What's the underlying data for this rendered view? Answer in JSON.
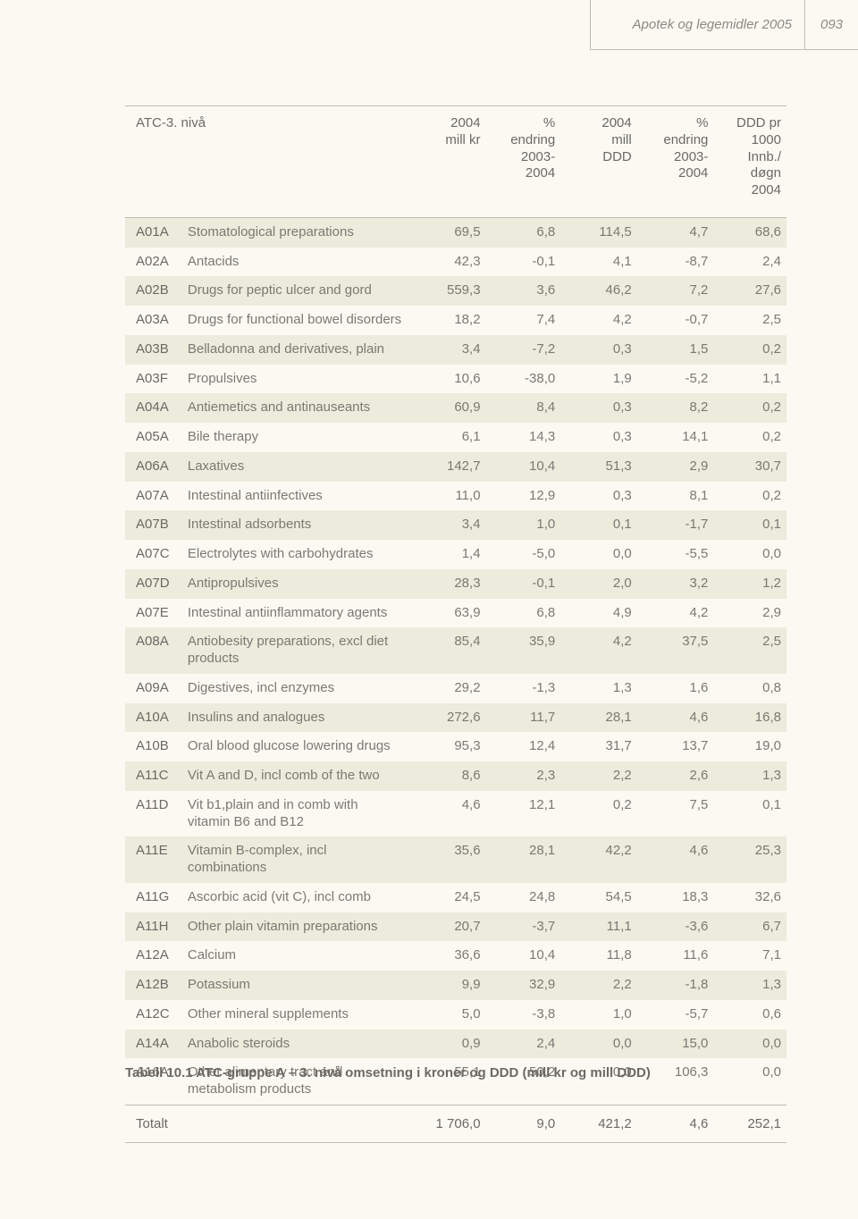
{
  "header": {
    "title": "Apotek og legemidler 2005",
    "page_num": "093"
  },
  "caption": "Tabell 10.1 ATC-gruppe A – 3. nivå omsetning i kroner og DDD (mill kr og mill DDD)",
  "colors": {
    "page_bg": "#fcf9f3",
    "row_shade": "#ecebdc",
    "border": "#bdbcb2",
    "text_primary": "#696a64",
    "text_secondary": "#797a72",
    "header_italic": "#8a8a82"
  },
  "typography": {
    "body_fontsize": 15,
    "caption_fontsize": 15,
    "caption_weight": 600,
    "header_style": "italic"
  },
  "table": {
    "columns": [
      {
        "key": "atc",
        "label": "ATC-3. nivå",
        "align": "left",
        "span": 2
      },
      {
        "key": "millkr",
        "label": "2004\nmill kr",
        "align": "right"
      },
      {
        "key": "pct1",
        "label": "%\nendring\n2003-\n2004",
        "align": "right"
      },
      {
        "key": "millddd",
        "label": "2004\nmill\nDDD",
        "align": "right"
      },
      {
        "key": "pct2",
        "label": "%\nendring\n2003-\n2004",
        "align": "right"
      },
      {
        "key": "dddpr",
        "label": "DDD pr\n1000\nInnb./\ndøgn\n2004",
        "align": "right"
      }
    ],
    "rows": [
      {
        "code": "A01A",
        "desc": "Stomatological preparations",
        "v": [
          "69,5",
          "6,8",
          "114,5",
          "4,7",
          "68,6"
        ]
      },
      {
        "code": "A02A",
        "desc": "Antacids",
        "v": [
          "42,3",
          "-0,1",
          "4,1",
          "-8,7",
          "2,4"
        ]
      },
      {
        "code": "A02B",
        "desc": "Drugs for peptic ulcer and gord",
        "v": [
          "559,3",
          "3,6",
          "46,2",
          "7,2",
          "27,6"
        ]
      },
      {
        "code": "A03A",
        "desc": "Drugs for functional bowel disorders",
        "v": [
          "18,2",
          "7,4",
          "4,2",
          "-0,7",
          "2,5"
        ]
      },
      {
        "code": "A03B",
        "desc": "Belladonna and derivatives, plain",
        "v": [
          "3,4",
          "-7,2",
          "0,3",
          "1,5",
          "0,2"
        ]
      },
      {
        "code": "A03F",
        "desc": "Propulsives",
        "v": [
          "10,6",
          "-38,0",
          "1,9",
          "-5,2",
          "1,1"
        ]
      },
      {
        "code": "A04A",
        "desc": "Antiemetics and antinauseants",
        "v": [
          "60,9",
          "8,4",
          "0,3",
          "8,2",
          "0,2"
        ]
      },
      {
        "code": "A05A",
        "desc": "Bile therapy",
        "v": [
          "6,1",
          "14,3",
          "0,3",
          "14,1",
          "0,2"
        ]
      },
      {
        "code": "A06A",
        "desc": "Laxatives",
        "v": [
          "142,7",
          "10,4",
          "51,3",
          "2,9",
          "30,7"
        ]
      },
      {
        "code": "A07A",
        "desc": "Intestinal antiinfectives",
        "v": [
          "11,0",
          "12,9",
          "0,3",
          "8,1",
          "0,2"
        ]
      },
      {
        "code": "A07B",
        "desc": "Intestinal adsorbents",
        "v": [
          "3,4",
          "1,0",
          "0,1",
          "-1,7",
          "0,1"
        ]
      },
      {
        "code": "A07C",
        "desc": "Electrolytes with carbohydrates",
        "v": [
          "1,4",
          "-5,0",
          "0,0",
          "-5,5",
          "0,0"
        ]
      },
      {
        "code": "A07D",
        "desc": "Antipropulsives",
        "v": [
          "28,3",
          "-0,1",
          "2,0",
          "3,2",
          "1,2"
        ]
      },
      {
        "code": "A07E",
        "desc": "Intestinal antiinflammatory agents",
        "v": [
          "63,9",
          "6,8",
          "4,9",
          "4,2",
          "2,9"
        ]
      },
      {
        "code": "A08A",
        "desc": "Antiobesity preparations, excl diet products",
        "v": [
          "85,4",
          "35,9",
          "4,2",
          "37,5",
          "2,5"
        ]
      },
      {
        "code": "A09A",
        "desc": "Digestives, incl enzymes",
        "v": [
          "29,2",
          "-1,3",
          "1,3",
          "1,6",
          "0,8"
        ]
      },
      {
        "code": "A10A",
        "desc": "Insulins and analogues",
        "v": [
          "272,6",
          "11,7",
          "28,1",
          "4,6",
          "16,8"
        ]
      },
      {
        "code": "A10B",
        "desc": "Oral blood glucose lowering drugs",
        "v": [
          "95,3",
          "12,4",
          "31,7",
          "13,7",
          "19,0"
        ]
      },
      {
        "code": "A11C",
        "desc": "Vit A and D, incl comb of the two",
        "v": [
          "8,6",
          "2,3",
          "2,2",
          "2,6",
          "1,3"
        ]
      },
      {
        "code": "A11D",
        "desc": "Vit b1,plain and in comb with vitamin B6 and B12",
        "v": [
          "4,6",
          "12,1",
          "0,2",
          "7,5",
          "0,1"
        ]
      },
      {
        "code": "A11E",
        "desc": "Vitamin B-complex, incl combinations",
        "v": [
          "35,6",
          "28,1",
          "42,2",
          "4,6",
          "25,3"
        ]
      },
      {
        "code": "A11G",
        "desc": "Ascorbic acid (vit C), incl comb",
        "v": [
          "24,5",
          "24,8",
          "54,5",
          "18,3",
          "32,6"
        ]
      },
      {
        "code": "A11H",
        "desc": "Other plain vitamin preparations",
        "v": [
          "20,7",
          "-3,7",
          "11,1",
          "-3,6",
          "6,7"
        ]
      },
      {
        "code": "A12A",
        "desc": "Calcium",
        "v": [
          "36,6",
          "10,4",
          "11,8",
          "11,6",
          "7,1"
        ]
      },
      {
        "code": "A12B",
        "desc": "Potassium",
        "v": [
          "9,9",
          "32,9",
          "2,2",
          "-1,8",
          "1,3"
        ]
      },
      {
        "code": "A12C",
        "desc": "Other mineral supplements",
        "v": [
          "5,0",
          "-3,8",
          "1,0",
          "-5,7",
          "0,6"
        ]
      },
      {
        "code": "A14A",
        "desc": "Anabolic steroids",
        "v": [
          "0,9",
          "2,4",
          "0,0",
          "15,0",
          "0,0"
        ]
      },
      {
        "code": "A16A",
        "desc": "Other alimentary tract and metabolism products",
        "v": [
          "55,1",
          "50,2",
          "0,0",
          "106,3",
          "0,0"
        ]
      }
    ],
    "total": {
      "label": "Totalt",
      "v": [
        "1 706,0",
        "9,0",
        "421,2",
        "4,6",
        "252,1"
      ]
    }
  }
}
